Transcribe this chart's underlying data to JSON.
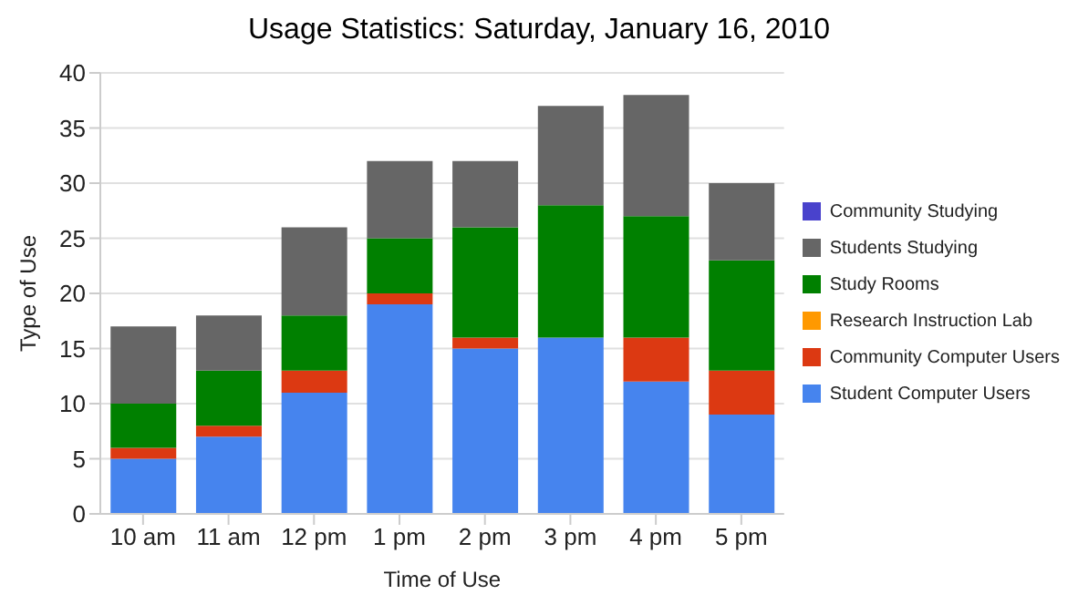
{
  "chart_data": {
    "type": "bar",
    "title": "Usage Statistics: Saturday, January 16, 2010",
    "xlabel": "Time of Use",
    "ylabel": "Type of Use",
    "categories": [
      "10 am",
      "11 am",
      "12 pm",
      "1 pm",
      "2 pm",
      "3 pm",
      "4 pm",
      "5 pm"
    ],
    "stacked": true,
    "ylim": [
      0,
      40
    ],
    "yticks": [
      0,
      5,
      10,
      15,
      20,
      25,
      30,
      35,
      40
    ],
    "grid": "y",
    "legend": "right",
    "series": [
      {
        "name": "Student Computer Users",
        "color": "#4684ee",
        "values": [
          5,
          7,
          11,
          19,
          15,
          16,
          12,
          9
        ]
      },
      {
        "name": "Community Computer Users",
        "color": "#dc3912",
        "values": [
          1,
          1,
          2,
          1,
          1,
          0,
          4,
          4
        ]
      },
      {
        "name": "Research Instruction Lab",
        "color": "#ff9900",
        "values": [
          0,
          0,
          0,
          0,
          0,
          0,
          0,
          0
        ]
      },
      {
        "name": "Study Rooms",
        "color": "#008000",
        "values": [
          4,
          5,
          5,
          5,
          10,
          12,
          11,
          10
        ]
      },
      {
        "name": "Students Studying",
        "color": "#666666",
        "values": [
          7,
          5,
          8,
          7,
          6,
          9,
          11,
          7
        ]
      },
      {
        "name": "Community Studying",
        "color": "#4942cc",
        "values": [
          0,
          0,
          0,
          0,
          0,
          0,
          0,
          0
        ]
      }
    ]
  }
}
